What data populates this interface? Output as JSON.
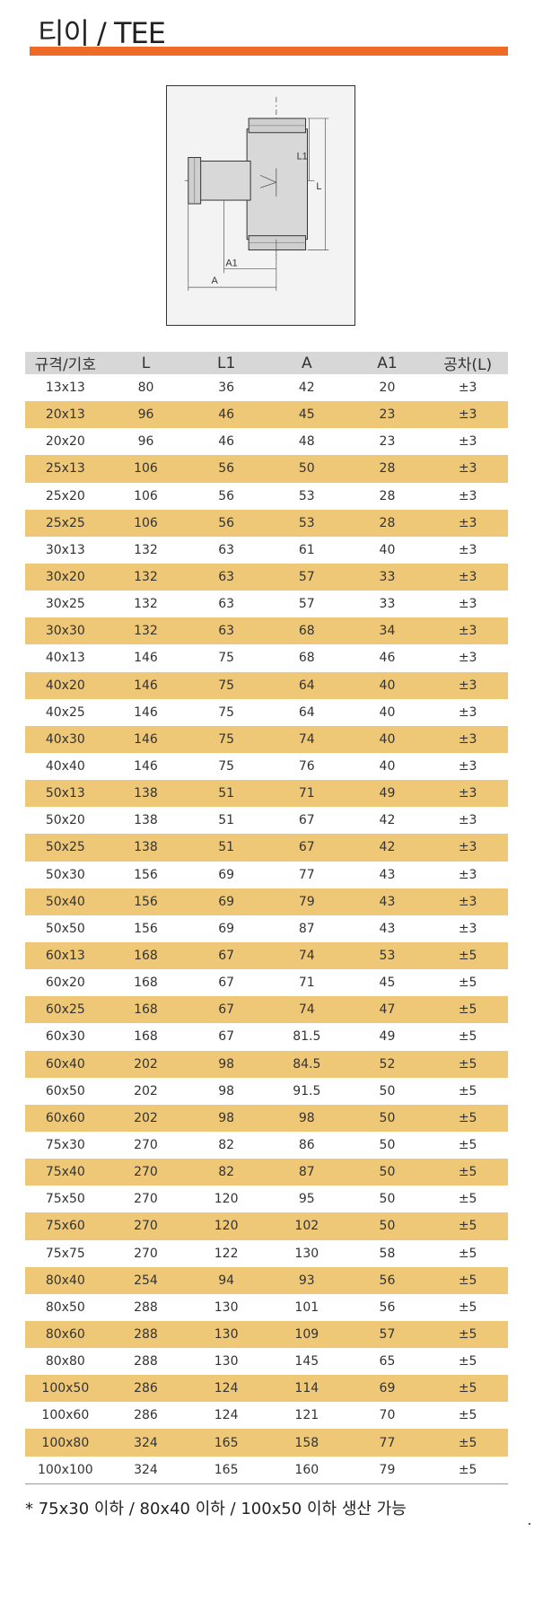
{
  "title": "티이 / TEE",
  "diagram": {
    "labels": {
      "l1": "L1",
      "l": "L",
      "a1": "A1",
      "a": "A"
    }
  },
  "table": {
    "headers": [
      "규격/기호",
      "L",
      "L1",
      "A",
      "A1",
      "공차(L)"
    ],
    "rows": [
      [
        "13x13",
        "80",
        "36",
        "42",
        "20",
        "±3"
      ],
      [
        "20x13",
        "96",
        "46",
        "45",
        "23",
        "±3"
      ],
      [
        "20x20",
        "96",
        "46",
        "48",
        "23",
        "±3"
      ],
      [
        "25x13",
        "106",
        "56",
        "50",
        "28",
        "±3"
      ],
      [
        "25x20",
        "106",
        "56",
        "53",
        "28",
        "±3"
      ],
      [
        "25x25",
        "106",
        "56",
        "53",
        "28",
        "±3"
      ],
      [
        "30x13",
        "132",
        "63",
        "61",
        "40",
        "±3"
      ],
      [
        "30x20",
        "132",
        "63",
        "57",
        "33",
        "±3"
      ],
      [
        "30x25",
        "132",
        "63",
        "57",
        "33",
        "±3"
      ],
      [
        "30x30",
        "132",
        "63",
        "68",
        "34",
        "±3"
      ],
      [
        "40x13",
        "146",
        "75",
        "68",
        "46",
        "±3"
      ],
      [
        "40x20",
        "146",
        "75",
        "64",
        "40",
        "±3"
      ],
      [
        "40x25",
        "146",
        "75",
        "64",
        "40",
        "±3"
      ],
      [
        "40x30",
        "146",
        "75",
        "74",
        "40",
        "±3"
      ],
      [
        "40x40",
        "146",
        "75",
        "76",
        "40",
        "±3"
      ],
      [
        "50x13",
        "138",
        "51",
        "71",
        "49",
        "±3"
      ],
      [
        "50x20",
        "138",
        "51",
        "67",
        "42",
        "±3"
      ],
      [
        "50x25",
        "138",
        "51",
        "67",
        "42",
        "±3"
      ],
      [
        "50x30",
        "156",
        "69",
        "77",
        "43",
        "±3"
      ],
      [
        "50x40",
        "156",
        "69",
        "79",
        "43",
        "±3"
      ],
      [
        "50x50",
        "156",
        "69",
        "87",
        "43",
        "±3"
      ],
      [
        "60x13",
        "168",
        "67",
        "74",
        "53",
        "±5"
      ],
      [
        "60x20",
        "168",
        "67",
        "71",
        "45",
        "±5"
      ],
      [
        "60x25",
        "168",
        "67",
        "74",
        "47",
        "±5"
      ],
      [
        "60x30",
        "168",
        "67",
        "81.5",
        "49",
        "±5"
      ],
      [
        "60x40",
        "202",
        "98",
        "84.5",
        "52",
        "±5"
      ],
      [
        "60x50",
        "202",
        "98",
        "91.5",
        "50",
        "±5"
      ],
      [
        "60x60",
        "202",
        "98",
        "98",
        "50",
        "±5"
      ],
      [
        "75x30",
        "270",
        "82",
        "86",
        "50",
        "±5"
      ],
      [
        "75x40",
        "270",
        "82",
        "87",
        "50",
        "±5"
      ],
      [
        "75x50",
        "270",
        "120",
        "95",
        "50",
        "±5"
      ],
      [
        "75x60",
        "270",
        "120",
        "102",
        "50",
        "±5"
      ],
      [
        "75x75",
        "270",
        "122",
        "130",
        "58",
        "±5"
      ],
      [
        "80x40",
        "254",
        "94",
        "93",
        "56",
        "±5"
      ],
      [
        "80x50",
        "288",
        "130",
        "101",
        "56",
        "±5"
      ],
      [
        "80x60",
        "288",
        "130",
        "109",
        "57",
        "±5"
      ],
      [
        "80x80",
        "288",
        "130",
        "145",
        "65",
        "±5"
      ],
      [
        "100x50",
        "286",
        "124",
        "114",
        "69",
        "±5"
      ],
      [
        "100x60",
        "286",
        "124",
        "121",
        "70",
        "±5"
      ],
      [
        "100x80",
        "324",
        "165",
        "158",
        "77",
        "±5"
      ],
      [
        "100x100",
        "324",
        "165",
        "160",
        "79",
        "±5"
      ]
    ]
  },
  "note": "* 75x30 이하 / 80x40 이하 / 100x50 이하 생산 가능",
  "colors": {
    "accent": "#ee6a26",
    "row_highlight": "#eec877",
    "header_bg": "#d7d7d7"
  }
}
